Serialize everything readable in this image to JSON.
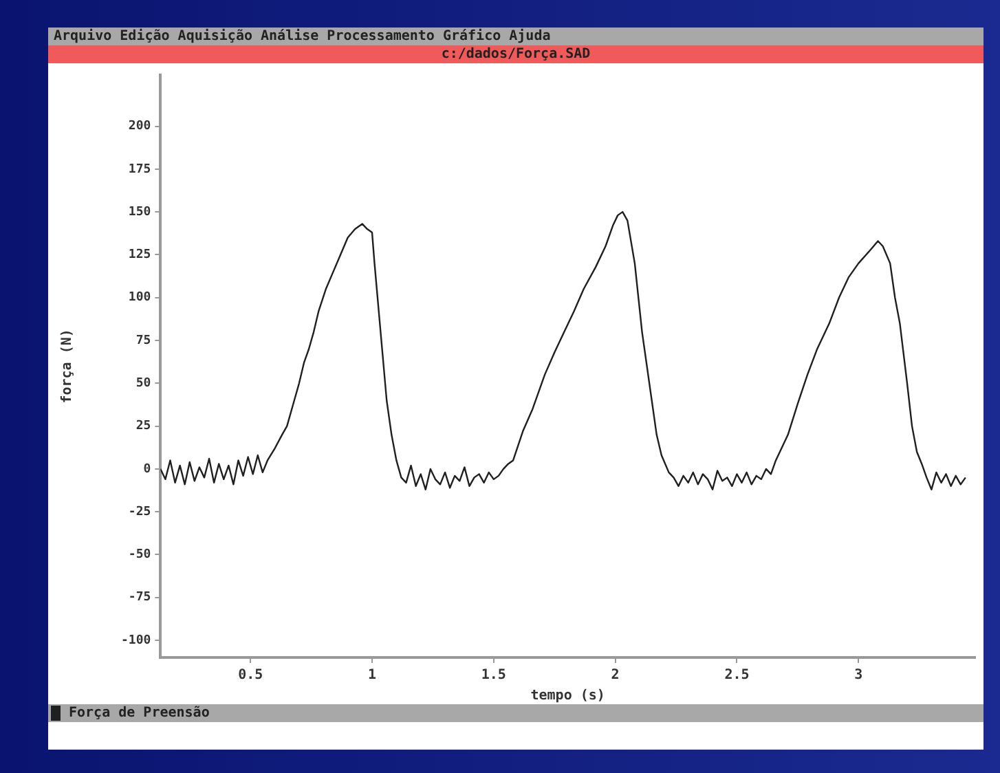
{
  "chart_data": {
    "type": "line",
    "title": "c:/dados/Força.SAD",
    "annotations": [
      "Arquivo Edição Aquisição Análise Processamento Gráfico Ajuda"
    ],
    "xlabel": "tempo (s)",
    "ylabel": "força (N)",
    "xlim": [
      0.13,
      3.48
    ],
    "xticks": [
      0.5,
      1,
      1.5,
      2,
      2.5,
      3
    ],
    "ylim": [
      -110,
      230
    ],
    "yticks": [
      -100,
      -75,
      -50,
      -25,
      0,
      25,
      50,
      75,
      100,
      125,
      150,
      175,
      200
    ],
    "grid": false,
    "legend": "bottom",
    "marker": "none",
    "line_style": "solid",
    "x": [
      0.13,
      0.15,
      0.17,
      0.19,
      0.21,
      0.23,
      0.25,
      0.27,
      0.29,
      0.31,
      0.33,
      0.35,
      0.37,
      0.39,
      0.41,
      0.43,
      0.45,
      0.47,
      0.49,
      0.51,
      0.53,
      0.55,
      0.57,
      0.6,
      0.63,
      0.65,
      0.68,
      0.7,
      0.72,
      0.74,
      0.76,
      0.78,
      0.81,
      0.84,
      0.87,
      0.9,
      0.93,
      0.96,
      0.98,
      1.0,
      1.01,
      1.035,
      1.06,
      1.08,
      1.1,
      1.12,
      1.14,
      1.16,
      1.18,
      1.2,
      1.22,
      1.24,
      1.26,
      1.28,
      1.3,
      1.32,
      1.34,
      1.36,
      1.38,
      1.4,
      1.42,
      1.44,
      1.46,
      1.48,
      1.5,
      1.52,
      1.54,
      1.56,
      1.58,
      1.62,
      1.66,
      1.71,
      1.75,
      1.79,
      1.83,
      1.87,
      1.92,
      1.96,
      1.99,
      2.01,
      2.03,
      2.05,
      2.08,
      2.11,
      2.15,
      2.17,
      2.19,
      2.22,
      2.24,
      2.26,
      2.28,
      2.3,
      2.32,
      2.34,
      2.36,
      2.38,
      2.4,
      2.42,
      2.44,
      2.46,
      2.48,
      2.5,
      2.52,
      2.54,
      2.56,
      2.58,
      2.6,
      2.62,
      2.64,
      2.66,
      2.71,
      2.75,
      2.79,
      2.83,
      2.88,
      2.92,
      2.96,
      3.0,
      3.05,
      3.08,
      3.1,
      3.13,
      3.15,
      3.17,
      3.2,
      3.22,
      3.24,
      3.26,
      3.28,
      3.3,
      3.32,
      3.34,
      3.36,
      3.38,
      3.4,
      3.42,
      3.44
    ],
    "series": [
      {
        "name": "Força de Preensão",
        "color": "#202020",
        "values": [
          0,
          -6,
          5,
          -8,
          2,
          -9,
          4,
          -7,
          1,
          -5,
          6,
          -8,
          3,
          -6,
          2,
          -9,
          5,
          -4,
          7,
          -3,
          8,
          -2,
          5,
          12,
          20,
          25,
          40,
          50,
          62,
          70,
          80,
          92,
          105,
          115,
          125,
          135,
          140,
          143,
          140,
          138,
          120,
          80,
          40,
          20,
          5,
          -5,
          -8,
          2,
          -10,
          -3,
          -12,
          0,
          -6,
          -9,
          -2,
          -11,
          -4,
          -7,
          1,
          -10,
          -5,
          -3,
          -8,
          -2,
          -6,
          -4,
          0,
          3,
          5,
          22,
          35,
          55,
          68,
          80,
          92,
          105,
          118,
          130,
          142,
          148,
          150,
          145,
          120,
          80,
          40,
          20,
          8,
          -2,
          -5,
          -10,
          -4,
          -8,
          -2,
          -9,
          -3,
          -6,
          -12,
          -1,
          -7,
          -5,
          -10,
          -3,
          -8,
          -2,
          -9,
          -4,
          -6,
          0,
          -3,
          5,
          20,
          38,
          55,
          70,
          85,
          100,
          112,
          120,
          128,
          133,
          130,
          120,
          100,
          85,
          50,
          25,
          10,
          3,
          -5,
          -12,
          -2,
          -8,
          -3,
          -10,
          -4,
          -9,
          -5
        ]
      }
    ]
  }
}
